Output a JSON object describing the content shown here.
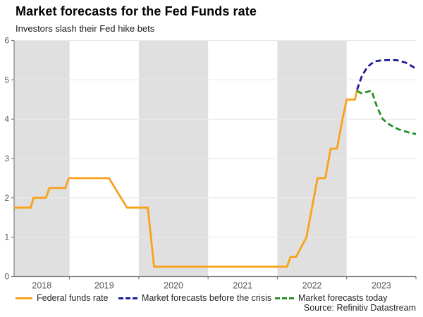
{
  "header": {
    "title": "Market forecasts for the Fed Funds rate",
    "subtitle": "Investors slash their Fed hike bets"
  },
  "source": "Source: Refinitiv Datastream",
  "chart_data": {
    "type": "line",
    "title": "Market forecasts for the Fed Funds rate",
    "subtitle": "Investors slash their Fed hike bets",
    "xlabel": "",
    "ylabel": "",
    "x_domain": [
      2018.2,
      2024.0
    ],
    "ylim": [
      0,
      6
    ],
    "y_ticks": [
      0,
      1,
      2,
      3,
      4,
      5,
      6
    ],
    "x_axis_tick_years": [
      2019,
      2020,
      2021,
      2022,
      2023,
      2024
    ],
    "x_tick_labels": [
      {
        "label": "2018",
        "year": 2018.6
      },
      {
        "label": "2019",
        "year": 2019.5
      },
      {
        "label": "2020",
        "year": 2020.5
      },
      {
        "label": "2021",
        "year": 2021.5
      },
      {
        "label": "2022",
        "year": 2022.5
      },
      {
        "label": "2023",
        "year": 2023.5
      }
    ],
    "shaded_bands": [
      [
        2018.2,
        2019.0
      ],
      [
        2020.0,
        2021.0
      ],
      [
        2022.0,
        2023.0
      ]
    ],
    "band_color": "#e0e0e0",
    "grid_color": "#e9e9e9",
    "axis_color": "#808080",
    "tick_label_color": "#595959",
    "grid_on": true,
    "legend_position": "bottom",
    "series": [
      {
        "name": "Federal funds rate",
        "color": "#F9A11B",
        "dash": false,
        "points": [
          [
            2018.2,
            1.75
          ],
          [
            2018.44,
            1.75
          ],
          [
            2018.48,
            2.0
          ],
          [
            2018.66,
            2.0
          ],
          [
            2018.71,
            2.25
          ],
          [
            2018.94,
            2.25
          ],
          [
            2018.99,
            2.5
          ],
          [
            2019.57,
            2.5
          ],
          [
            2019.83,
            1.75
          ],
          [
            2020.13,
            1.75
          ],
          [
            2020.22,
            0.25
          ],
          [
            2022.14,
            0.25
          ],
          [
            2022.19,
            0.5
          ],
          [
            2022.27,
            0.5
          ],
          [
            2022.42,
            1.0
          ],
          [
            2022.5,
            1.75
          ],
          [
            2022.58,
            2.5
          ],
          [
            2022.69,
            2.5
          ],
          [
            2022.77,
            3.25
          ],
          [
            2022.86,
            3.25
          ],
          [
            2022.94,
            4.0
          ],
          [
            2023.0,
            4.5
          ],
          [
            2023.12,
            4.5
          ],
          [
            2023.15,
            4.75
          ]
        ]
      },
      {
        "name": "Market forecasts before the crisis",
        "color": "#1C1C96",
        "dash": true,
        "points": [
          [
            2023.15,
            4.75
          ],
          [
            2023.22,
            5.1
          ],
          [
            2023.3,
            5.33
          ],
          [
            2023.4,
            5.47
          ],
          [
            2023.52,
            5.5
          ],
          [
            2023.72,
            5.5
          ],
          [
            2023.85,
            5.44
          ],
          [
            2023.95,
            5.34
          ],
          [
            2024.0,
            5.28
          ]
        ]
      },
      {
        "name": "Market forecasts today",
        "color": "#239023",
        "dash": true,
        "points": [
          [
            2023.15,
            4.72
          ],
          [
            2023.21,
            4.66
          ],
          [
            2023.3,
            4.7
          ],
          [
            2023.36,
            4.72
          ],
          [
            2023.44,
            4.3
          ],
          [
            2023.52,
            4.0
          ],
          [
            2023.62,
            3.86
          ],
          [
            2023.75,
            3.74
          ],
          [
            2023.9,
            3.66
          ],
          [
            2024.0,
            3.62
          ]
        ]
      }
    ]
  }
}
